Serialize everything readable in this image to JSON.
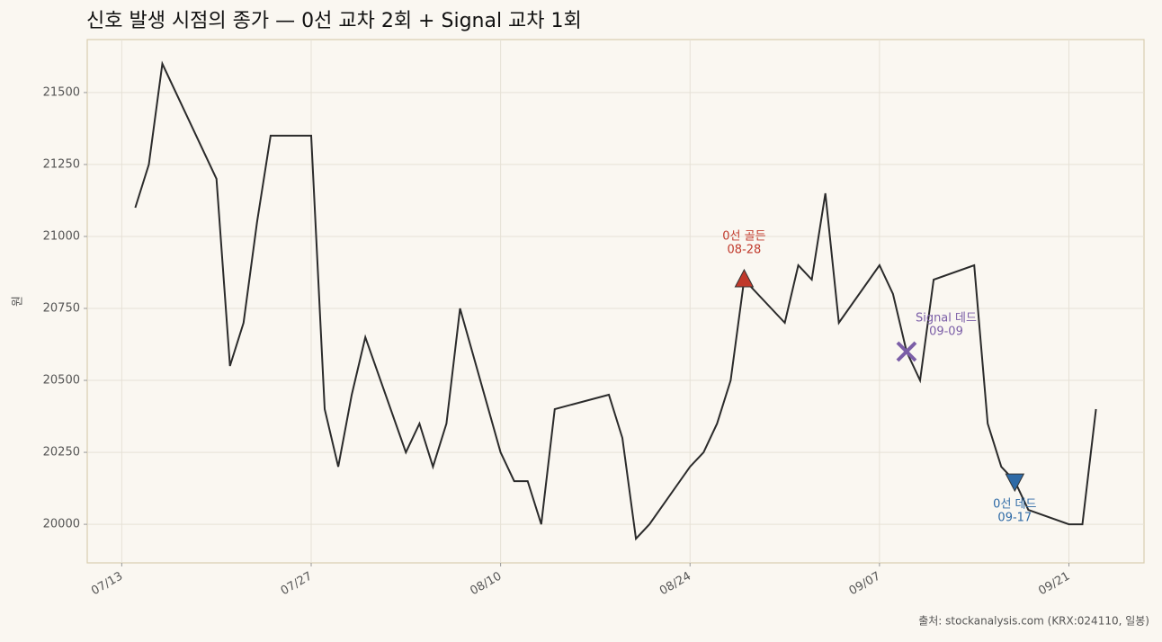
{
  "chart_data": {
    "type": "line",
    "title": "신호 발생 시점의 종가 — 0선 교차 2회 + Signal 교차 1회",
    "y_label": "원",
    "source": "출처: stockanalysis.com (KRX:024110, 일봉)",
    "x": [
      "07/14",
      "07/15",
      "07/16",
      "07/20",
      "07/21",
      "07/22",
      "07/23",
      "07/24",
      "07/27",
      "07/28",
      "07/29",
      "07/30",
      "07/31",
      "08/03",
      "08/04",
      "08/05",
      "08/06",
      "08/07",
      "08/10",
      "08/11",
      "08/12",
      "08/13",
      "08/14",
      "08/18",
      "08/19",
      "08/20",
      "08/21",
      "08/24",
      "08/25",
      "08/26",
      "08/27",
      "08/28",
      "08/31",
      "09/01",
      "09/02",
      "09/03",
      "09/04",
      "09/07",
      "09/08",
      "09/09",
      "09/10",
      "09/11",
      "09/14",
      "09/15",
      "09/16",
      "09/17",
      "09/18",
      "09/21",
      "09/22",
      "09/23"
    ],
    "values": [
      21100,
      21250,
      21600,
      21200,
      20550,
      20700,
      21050,
      21350,
      21350,
      20400,
      20200,
      20450,
      20650,
      20250,
      20350,
      20200,
      20350,
      20750,
      20250,
      20150,
      20150,
      20000,
      20400,
      20450,
      20300,
      19950,
      20000,
      20200,
      20250,
      20350,
      20500,
      20850,
      20700,
      20900,
      20850,
      21150,
      20700,
      20900,
      20800,
      20600,
      20500,
      20850,
      20900,
      20350,
      20200,
      20150,
      20050,
      20000,
      20000,
      20400
    ],
    "color": "#2b2b2b",
    "xticks": [
      "07/13",
      "07/27",
      "08/10",
      "08/24",
      "09/07",
      "09/21"
    ],
    "ylim": [
      19866,
      21684
    ],
    "yticks": [
      20000,
      20250,
      20500,
      20750,
      21000,
      21250,
      21500
    ],
    "grid": true,
    "annotations": [
      {
        "label": "0선 골든",
        "date_label": "08-28",
        "x": "08/28",
        "value": 20850,
        "marker": "triangle-up",
        "color": "#c0392b"
      },
      {
        "label": "Signal 데드",
        "date_label": "09-09",
        "x": "09/09",
        "value": 20600,
        "marker": "x",
        "color": "#7b5ea7"
      },
      {
        "label": "0선 데드",
        "date_label": "09-17",
        "x": "09/17",
        "value": 20150,
        "marker": "triangle-down",
        "color": "#2e6aa6"
      }
    ]
  }
}
